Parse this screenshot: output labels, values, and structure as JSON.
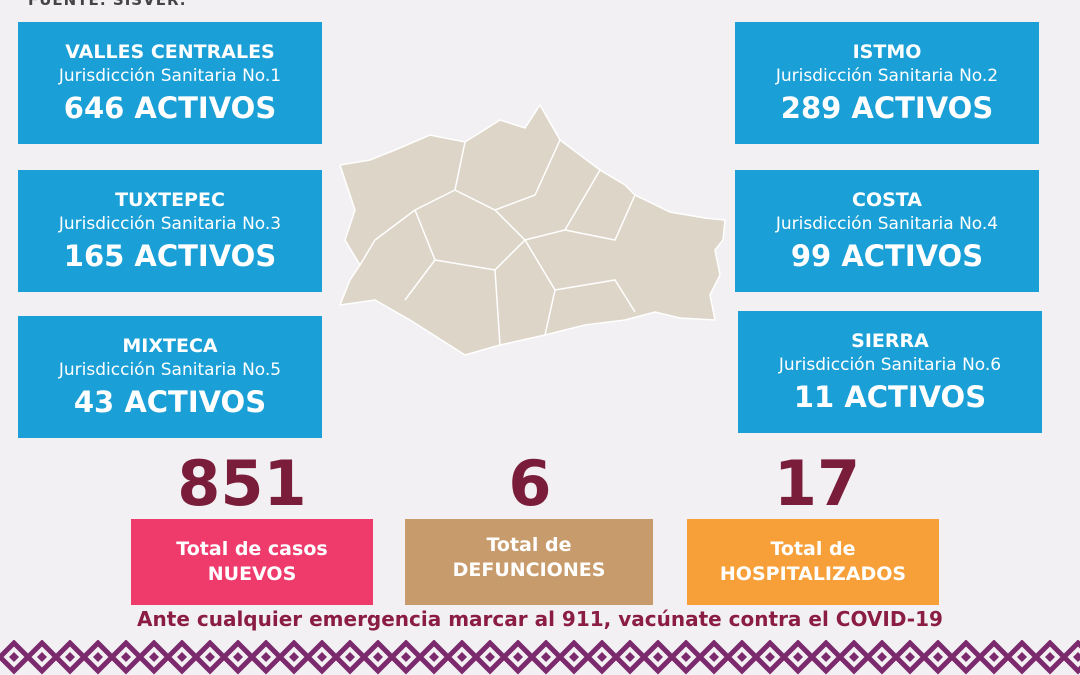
{
  "source": "FUENTE: SISVER.",
  "regions": [
    {
      "name": "VALLES CENTRALES",
      "jurisdiction": "Jurisdicción Sanitaria No.1",
      "active": "646 ACTIVOS"
    },
    {
      "name": "TUXTEPEC",
      "jurisdiction": "Jurisdicción Sanitaria No.3",
      "active": "165 ACTIVOS"
    },
    {
      "name": "MIXTECA",
      "jurisdiction": "Jurisdicción Sanitaria No.5",
      "active": "43 ACTIVOS"
    },
    {
      "name": "ISTMO",
      "jurisdiction": "Jurisdicción Sanitaria No.2",
      "active": "289 ACTIVOS"
    },
    {
      "name": "COSTA",
      "jurisdiction": "Jurisdicción Sanitaria No.4",
      "active": "99 ACTIVOS"
    },
    {
      "name": "SIERRA",
      "jurisdiction": "Jurisdicción Sanitaria No.6",
      "active": "11 ACTIVOS"
    }
  ],
  "totals": [
    {
      "value": 851,
      "line1": "Total de casos",
      "line2": "NUEVOS"
    },
    {
      "value": 6,
      "line1": "Total de",
      "line2": "DEFUNCIONES"
    },
    {
      "value": 17,
      "line1": "Total de",
      "line2": "HOSPITALIZADOS"
    }
  ],
  "footer": "Ante cualquier emergencia marcar al 911, vacúnate contra el COVID-19"
}
